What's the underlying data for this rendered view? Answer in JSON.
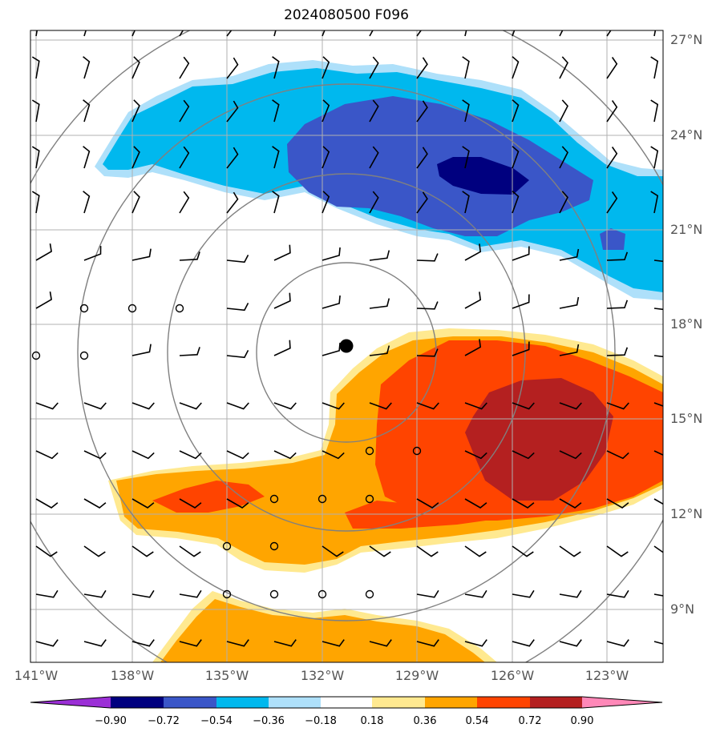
{
  "title": "2024080500 F096",
  "lat_labels": [
    "27°N",
    "24°N",
    "21°N",
    "18°N",
    "15°N",
    "12°N",
    "9°N"
  ],
  "lon_labels": [
    "141°W",
    "138°W",
    "135°W",
    "132°W",
    "129°W",
    "126°W",
    "123°W"
  ],
  "colorbar": {
    "ticks": [
      "−0.90",
      "−0.72",
      "−0.54",
      "−0.36",
      "−0.18",
      "0.18",
      "0.36",
      "0.54",
      "0.72",
      "0.90"
    ],
    "colors": [
      "#9b2fd6",
      "#00007f",
      "#3a56c8",
      "#00b8ee",
      "#aee0fa",
      "#ffffff",
      "#ffe990",
      "#ffa500",
      "#ff4400",
      "#b42020",
      "#ff88b8"
    ]
  },
  "storm_center": {
    "label_marker": "storm-center"
  },
  "range_rings": 4
}
